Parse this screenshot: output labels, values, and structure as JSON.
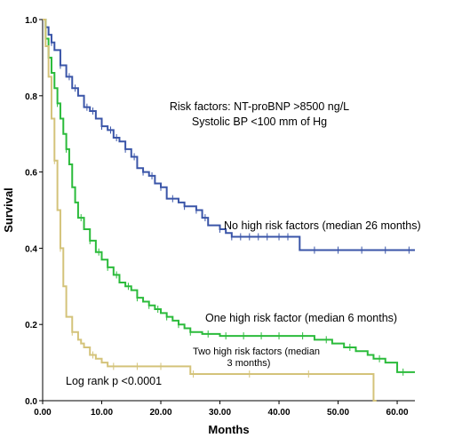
{
  "chart_data": {
    "type": "line",
    "xlabel": "Months",
    "ylabel": "Survival",
    "xlim": [
      0,
      63
    ],
    "ylim": [
      0,
      1.0
    ],
    "x_ticks": [
      "0.00",
      "10.00",
      "20.00",
      "30.00",
      "40.00",
      "50.00",
      "60.00"
    ],
    "x_tick_values": [
      0,
      10,
      20,
      30,
      40,
      50,
      60
    ],
    "y_ticks": [
      "0.0",
      "0.2",
      "0.4",
      "0.6",
      "0.8",
      "1.0"
    ],
    "y_tick_values": [
      0,
      0.2,
      0.4,
      0.6,
      0.8,
      1.0
    ],
    "grid": false,
    "annotations": {
      "risk_factors_line1": "Risk factors: NT-proBNP >8500 ng/L",
      "risk_factors_line2": "Systolic BP <100 mm of Hg",
      "log_rank": "Log rank p <0.0001",
      "label_none": "No high risk factors (median 26 months)",
      "label_one": "One high risk factor (median 6 months)",
      "label_two_line1": "Two high risk factors (median",
      "label_two_line2": "3 months)"
    },
    "series": [
      {
        "color": "#3a55a8",
        "x": [
          0,
          0.5,
          1,
          1.5,
          2,
          3,
          4,
          5,
          6,
          7,
          8,
          9,
          10,
          11,
          12,
          13,
          14,
          15,
          16,
          17,
          18,
          19,
          20,
          21,
          22,
          23,
          24,
          25,
          26,
          27,
          28,
          30,
          31,
          32,
          33,
          35,
          37,
          40,
          43,
          43.5,
          63
        ],
        "y": [
          1.0,
          0.98,
          0.96,
          0.94,
          0.92,
          0.88,
          0.85,
          0.82,
          0.8,
          0.77,
          0.76,
          0.74,
          0.72,
          0.71,
          0.69,
          0.68,
          0.66,
          0.64,
          0.61,
          0.6,
          0.59,
          0.57,
          0.56,
          0.53,
          0.53,
          0.52,
          0.51,
          0.51,
          0.5,
          0.48,
          0.46,
          0.45,
          0.44,
          0.43,
          0.43,
          0.43,
          0.43,
          0.43,
          0.43,
          0.395,
          0.395
        ],
        "censors": [
          1.5,
          3,
          4.5,
          5.5,
          7.5,
          8.5,
          10,
          11.5,
          12.5,
          14,
          15.5,
          17,
          18.5,
          20,
          22,
          24,
          26,
          27.5,
          30,
          32,
          33.5,
          35,
          36.5,
          38,
          40,
          41.5,
          46,
          50,
          54,
          58,
          62
        ]
      },
      {
        "color": "#2bbb3b",
        "x": [
          0,
          0.5,
          1,
          1.5,
          2,
          2.5,
          3,
          3.5,
          4,
          4.5,
          5,
          5.5,
          6,
          7,
          8,
          9,
          10,
          11,
          12,
          13,
          14,
          15,
          16,
          17,
          18,
          19,
          20,
          21,
          22,
          23,
          24,
          25,
          27,
          30,
          33,
          36,
          40,
          46,
          49,
          51,
          53,
          55,
          56,
          58,
          60,
          63
        ],
        "y": [
          1.0,
          0.95,
          0.9,
          0.86,
          0.82,
          0.78,
          0.74,
          0.7,
          0.66,
          0.62,
          0.56,
          0.52,
          0.48,
          0.45,
          0.42,
          0.39,
          0.37,
          0.35,
          0.33,
          0.31,
          0.3,
          0.29,
          0.27,
          0.26,
          0.25,
          0.24,
          0.23,
          0.22,
          0.21,
          0.2,
          0.19,
          0.18,
          0.175,
          0.17,
          0.17,
          0.17,
          0.17,
          0.16,
          0.15,
          0.14,
          0.13,
          0.12,
          0.11,
          0.1,
          0.075,
          0.075
        ],
        "censors": [
          1,
          2.5,
          4,
          6.5,
          8,
          9.5,
          11,
          12.5,
          14.5,
          16,
          18,
          19.5,
          21,
          23,
          25,
          28,
          31,
          34,
          37,
          40,
          44,
          48,
          52,
          57,
          61
        ]
      },
      {
        "color": "#d4c37a",
        "x": [
          0,
          0.5,
          1,
          1.5,
          2,
          2.5,
          3,
          3.5,
          4,
          5,
          6,
          6.5,
          7,
          8,
          9,
          10,
          11,
          12,
          13,
          14,
          15,
          16,
          17,
          18,
          19,
          20,
          21,
          22,
          23,
          24,
          25,
          26,
          30,
          35,
          40,
          45,
          50,
          54,
          55,
          56,
          56.5
        ],
        "y": [
          1.0,
          0.93,
          0.85,
          0.74,
          0.63,
          0.5,
          0.4,
          0.3,
          0.22,
          0.18,
          0.16,
          0.15,
          0.14,
          0.12,
          0.11,
          0.1,
          0.09,
          0.09,
          0.09,
          0.09,
          0.09,
          0.09,
          0.09,
          0.09,
          0.09,
          0.09,
          0.09,
          0.09,
          0.09,
          0.09,
          0.07,
          0.07,
          0.07,
          0.07,
          0.07,
          0.07,
          0.07,
          0.07,
          0.07,
          0.0,
          0.0
        ],
        "censors": [
          2,
          3,
          5,
          8.5,
          12,
          16,
          20,
          25.5,
          35,
          45
        ]
      }
    ]
  }
}
